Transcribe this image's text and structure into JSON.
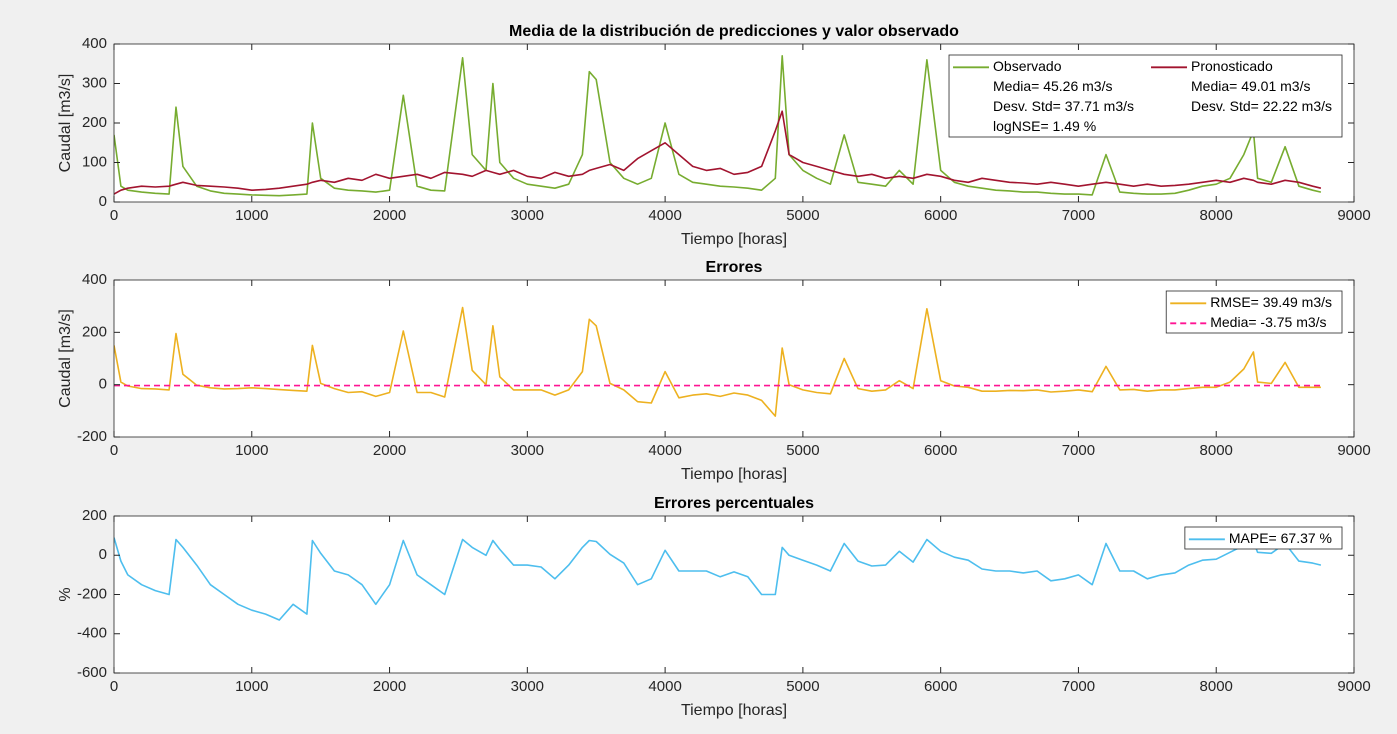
{
  "chart_data": [
    {
      "type": "line",
      "title": "Media de la distribución de predicciones y valor observado",
      "xlabel": "Tiempo [horas]",
      "ylabel": "Caudal [m3/s]",
      "x": [
        0,
        50,
        100,
        200,
        300,
        400,
        450,
        500,
        600,
        700,
        800,
        900,
        1000,
        1100,
        1200,
        1300,
        1400,
        1440,
        1500,
        1600,
        1700,
        1800,
        1900,
        2000,
        2100,
        2200,
        2300,
        2400,
        2530,
        2600,
        2700,
        2750,
        2800,
        2900,
        3000,
        3100,
        3200,
        3300,
        3400,
        3450,
        3500,
        3600,
        3700,
        3800,
        3900,
        4000,
        4100,
        4200,
        4300,
        4400,
        4500,
        4600,
        4700,
        4800,
        4850,
        4900,
        5000,
        5100,
        5200,
        5300,
        5400,
        5500,
        5600,
        5700,
        5800,
        5900,
        6000,
        6100,
        6200,
        6300,
        6400,
        6500,
        6600,
        6700,
        6800,
        6900,
        7000,
        7100,
        7200,
        7300,
        7400,
        7500,
        7600,
        7700,
        7800,
        7900,
        8000,
        8100,
        8200,
        8270,
        8300,
        8400,
        8500,
        8600,
        8700,
        8760
      ],
      "series": [
        {
          "name": "Observado",
          "color": "#77ac30",
          "stats": [
            "Media= 45.26 m3/s",
            "Desv. Std= 37.71 m3/s",
            "logNSE= 1.49 %"
          ],
          "values": [
            170,
            40,
            30,
            25,
            22,
            20,
            240,
            90,
            40,
            28,
            22,
            20,
            18,
            17,
            16,
            18,
            20,
            200,
            60,
            35,
            30,
            28,
            25,
            30,
            270,
            40,
            30,
            28,
            365,
            120,
            80,
            300,
            100,
            60,
            45,
            40,
            35,
            45,
            120,
            330,
            310,
            100,
            60,
            45,
            60,
            200,
            70,
            50,
            45,
            40,
            38,
            35,
            30,
            60,
            370,
            120,
            80,
            60,
            45,
            170,
            50,
            45,
            40,
            80,
            45,
            360,
            80,
            50,
            40,
            35,
            30,
            28,
            25,
            25,
            22,
            20,
            20,
            18,
            120,
            25,
            22,
            20,
            20,
            22,
            30,
            40,
            45,
            60,
            120,
            180,
            60,
            50,
            140,
            40,
            30,
            25
          ]
        },
        {
          "name": "Pronosticado",
          "color": "#a2142f",
          "stats": [
            "Media= 49.01 m3/s",
            "Desv. Std= 22.22 m3/s"
          ],
          "values": [
            20,
            30,
            35,
            40,
            38,
            40,
            45,
            50,
            42,
            40,
            38,
            35,
            30,
            32,
            35,
            40,
            45,
            50,
            55,
            50,
            60,
            55,
            70,
            60,
            65,
            70,
            60,
            75,
            70,
            65,
            80,
            75,
            70,
            80,
            65,
            60,
            75,
            65,
            70,
            80,
            85,
            95,
            80,
            110,
            130,
            150,
            120,
            90,
            80,
            85,
            70,
            75,
            90,
            180,
            230,
            120,
            100,
            90,
            80,
            70,
            65,
            70,
            60,
            65,
            60,
            70,
            65,
            55,
            50,
            60,
            55,
            50,
            48,
            45,
            50,
            45,
            40,
            45,
            50,
            45,
            40,
            45,
            40,
            42,
            45,
            50,
            55,
            50,
            60,
            55,
            50,
            45,
            55,
            50,
            40,
            35
          ]
        }
      ],
      "xlim": [
        0,
        9000
      ],
      "xticks": [
        0,
        1000,
        2000,
        3000,
        4000,
        5000,
        6000,
        7000,
        8000,
        9000
      ],
      "ylim": [
        0,
        400
      ],
      "yticks": [
        0,
        100,
        200,
        300,
        400
      ]
    },
    {
      "type": "line",
      "title": "Errores",
      "xlabel": "Tiempo [horas]",
      "ylabel": "Caudal [m3/s]",
      "x": [
        0,
        50,
        100,
        200,
        300,
        400,
        450,
        500,
        600,
        700,
        800,
        900,
        1000,
        1100,
        1200,
        1300,
        1400,
        1440,
        1500,
        1600,
        1700,
        1800,
        1900,
        2000,
        2100,
        2200,
        2300,
        2400,
        2530,
        2600,
        2700,
        2750,
        2800,
        2900,
        3000,
        3100,
        3200,
        3300,
        3400,
        3450,
        3500,
        3600,
        3700,
        3800,
        3900,
        4000,
        4100,
        4200,
        4300,
        4400,
        4500,
        4600,
        4700,
        4800,
        4850,
        4900,
        5000,
        5100,
        5200,
        5300,
        5400,
        5500,
        5600,
        5700,
        5800,
        5900,
        6000,
        6100,
        6200,
        6300,
        6400,
        6500,
        6600,
        6700,
        6800,
        6900,
        7000,
        7100,
        7200,
        7300,
        7400,
        7500,
        7600,
        7700,
        7800,
        7900,
        8000,
        8100,
        8200,
        8270,
        8300,
        8400,
        8500,
        8600,
        8700,
        8760
      ],
      "series": [
        {
          "name": "RMSE= 39.49 m3/s",
          "color": "#edb120",
          "values": [
            150,
            10,
            -5,
            -15,
            -16,
            -20,
            195,
            40,
            -2,
            -12,
            -16,
            -15,
            -12,
            -15,
            -19,
            -22,
            -25,
            150,
            5,
            -15,
            -30,
            -27,
            -45,
            -30,
            205,
            -30,
            -30,
            -47,
            295,
            55,
            0,
            225,
            30,
            -20,
            -20,
            -20,
            -40,
            -20,
            50,
            250,
            225,
            5,
            -20,
            -65,
            -70,
            50,
            -50,
            -40,
            -35,
            -45,
            -32,
            -40,
            -60,
            -120,
            140,
            0,
            -20,
            -30,
            -35,
            100,
            -15,
            -25,
            -20,
            15,
            -15,
            290,
            15,
            -5,
            -10,
            -25,
            -25,
            -22,
            -23,
            -20,
            -28,
            -25,
            -20,
            -27,
            70,
            -20,
            -18,
            -25,
            -20,
            -20,
            -15,
            -10,
            -10,
            10,
            60,
            125,
            10,
            5,
            85,
            -10,
            -10,
            -10
          ]
        },
        {
          "name": "Media= -3.75 m3/s",
          "color": "#ff1493",
          "dash": true,
          "x": [
            0,
            8760
          ],
          "values": [
            -3.75,
            -3.75
          ]
        }
      ],
      "xlim": [
        0,
        9000
      ],
      "xticks": [
        0,
        1000,
        2000,
        3000,
        4000,
        5000,
        6000,
        7000,
        8000,
        9000
      ],
      "ylim": [
        -200,
        400
      ],
      "yticks": [
        -200,
        0,
        200,
        400
      ]
    },
    {
      "type": "line",
      "title": "Errores percentuales",
      "xlabel": "Tiempo [horas]",
      "ylabel": "%",
      "x": [
        0,
        50,
        100,
        200,
        300,
        400,
        450,
        500,
        600,
        700,
        800,
        900,
        1000,
        1100,
        1200,
        1300,
        1400,
        1440,
        1500,
        1600,
        1700,
        1800,
        1900,
        2000,
        2100,
        2200,
        2300,
        2400,
        2530,
        2600,
        2700,
        2750,
        2800,
        2900,
        3000,
        3100,
        3200,
        3300,
        3400,
        3450,
        3500,
        3600,
        3700,
        3800,
        3900,
        4000,
        4100,
        4200,
        4300,
        4400,
        4500,
        4600,
        4700,
        4800,
        4850,
        4900,
        5000,
        5100,
        5200,
        5300,
        5400,
        5500,
        5600,
        5700,
        5800,
        5900,
        6000,
        6100,
        6200,
        6300,
        6400,
        6500,
        6600,
        6700,
        6800,
        6900,
        7000,
        7100,
        7200,
        7300,
        7400,
        7500,
        7600,
        7700,
        7800,
        7900,
        8000,
        8100,
        8200,
        8270,
        8300,
        8400,
        8500,
        8600,
        8700,
        8760
      ],
      "series": [
        {
          "name": "MAPE= 67.37 %",
          "color": "#4dbeee",
          "values": [
            90,
            -30,
            -100,
            -150,
            -180,
            -200,
            80,
            40,
            -50,
            -150,
            -200,
            -250,
            -280,
            -300,
            -330,
            -250,
            -300,
            75,
            10,
            -80,
            -100,
            -150,
            -250,
            -150,
            75,
            -100,
            -150,
            -200,
            80,
            40,
            0,
            75,
            30,
            -50,
            -50,
            -60,
            -120,
            -50,
            40,
            75,
            70,
            5,
            -40,
            -150,
            -120,
            25,
            -80,
            -80,
            -80,
            -110,
            -85,
            -110,
            -200,
            -200,
            40,
            0,
            -25,
            -50,
            -80,
            60,
            -30,
            -55,
            -50,
            20,
            -35,
            80,
            20,
            -10,
            -25,
            -70,
            -80,
            -80,
            -90,
            -80,
            -130,
            -120,
            -100,
            -150,
            60,
            -80,
            -80,
            -120,
            -100,
            -90,
            -50,
            -25,
            -20,
            15,
            50,
            70,
            15,
            10,
            60,
            -30,
            -40,
            -50
          ]
        }
      ],
      "xlim": [
        0,
        9000
      ],
      "xticks": [
        0,
        1000,
        2000,
        3000,
        4000,
        5000,
        6000,
        7000,
        8000,
        9000
      ],
      "ylim": [
        -600,
        200
      ],
      "yticks": [
        -600,
        -400,
        -200,
        0,
        200
      ]
    }
  ]
}
